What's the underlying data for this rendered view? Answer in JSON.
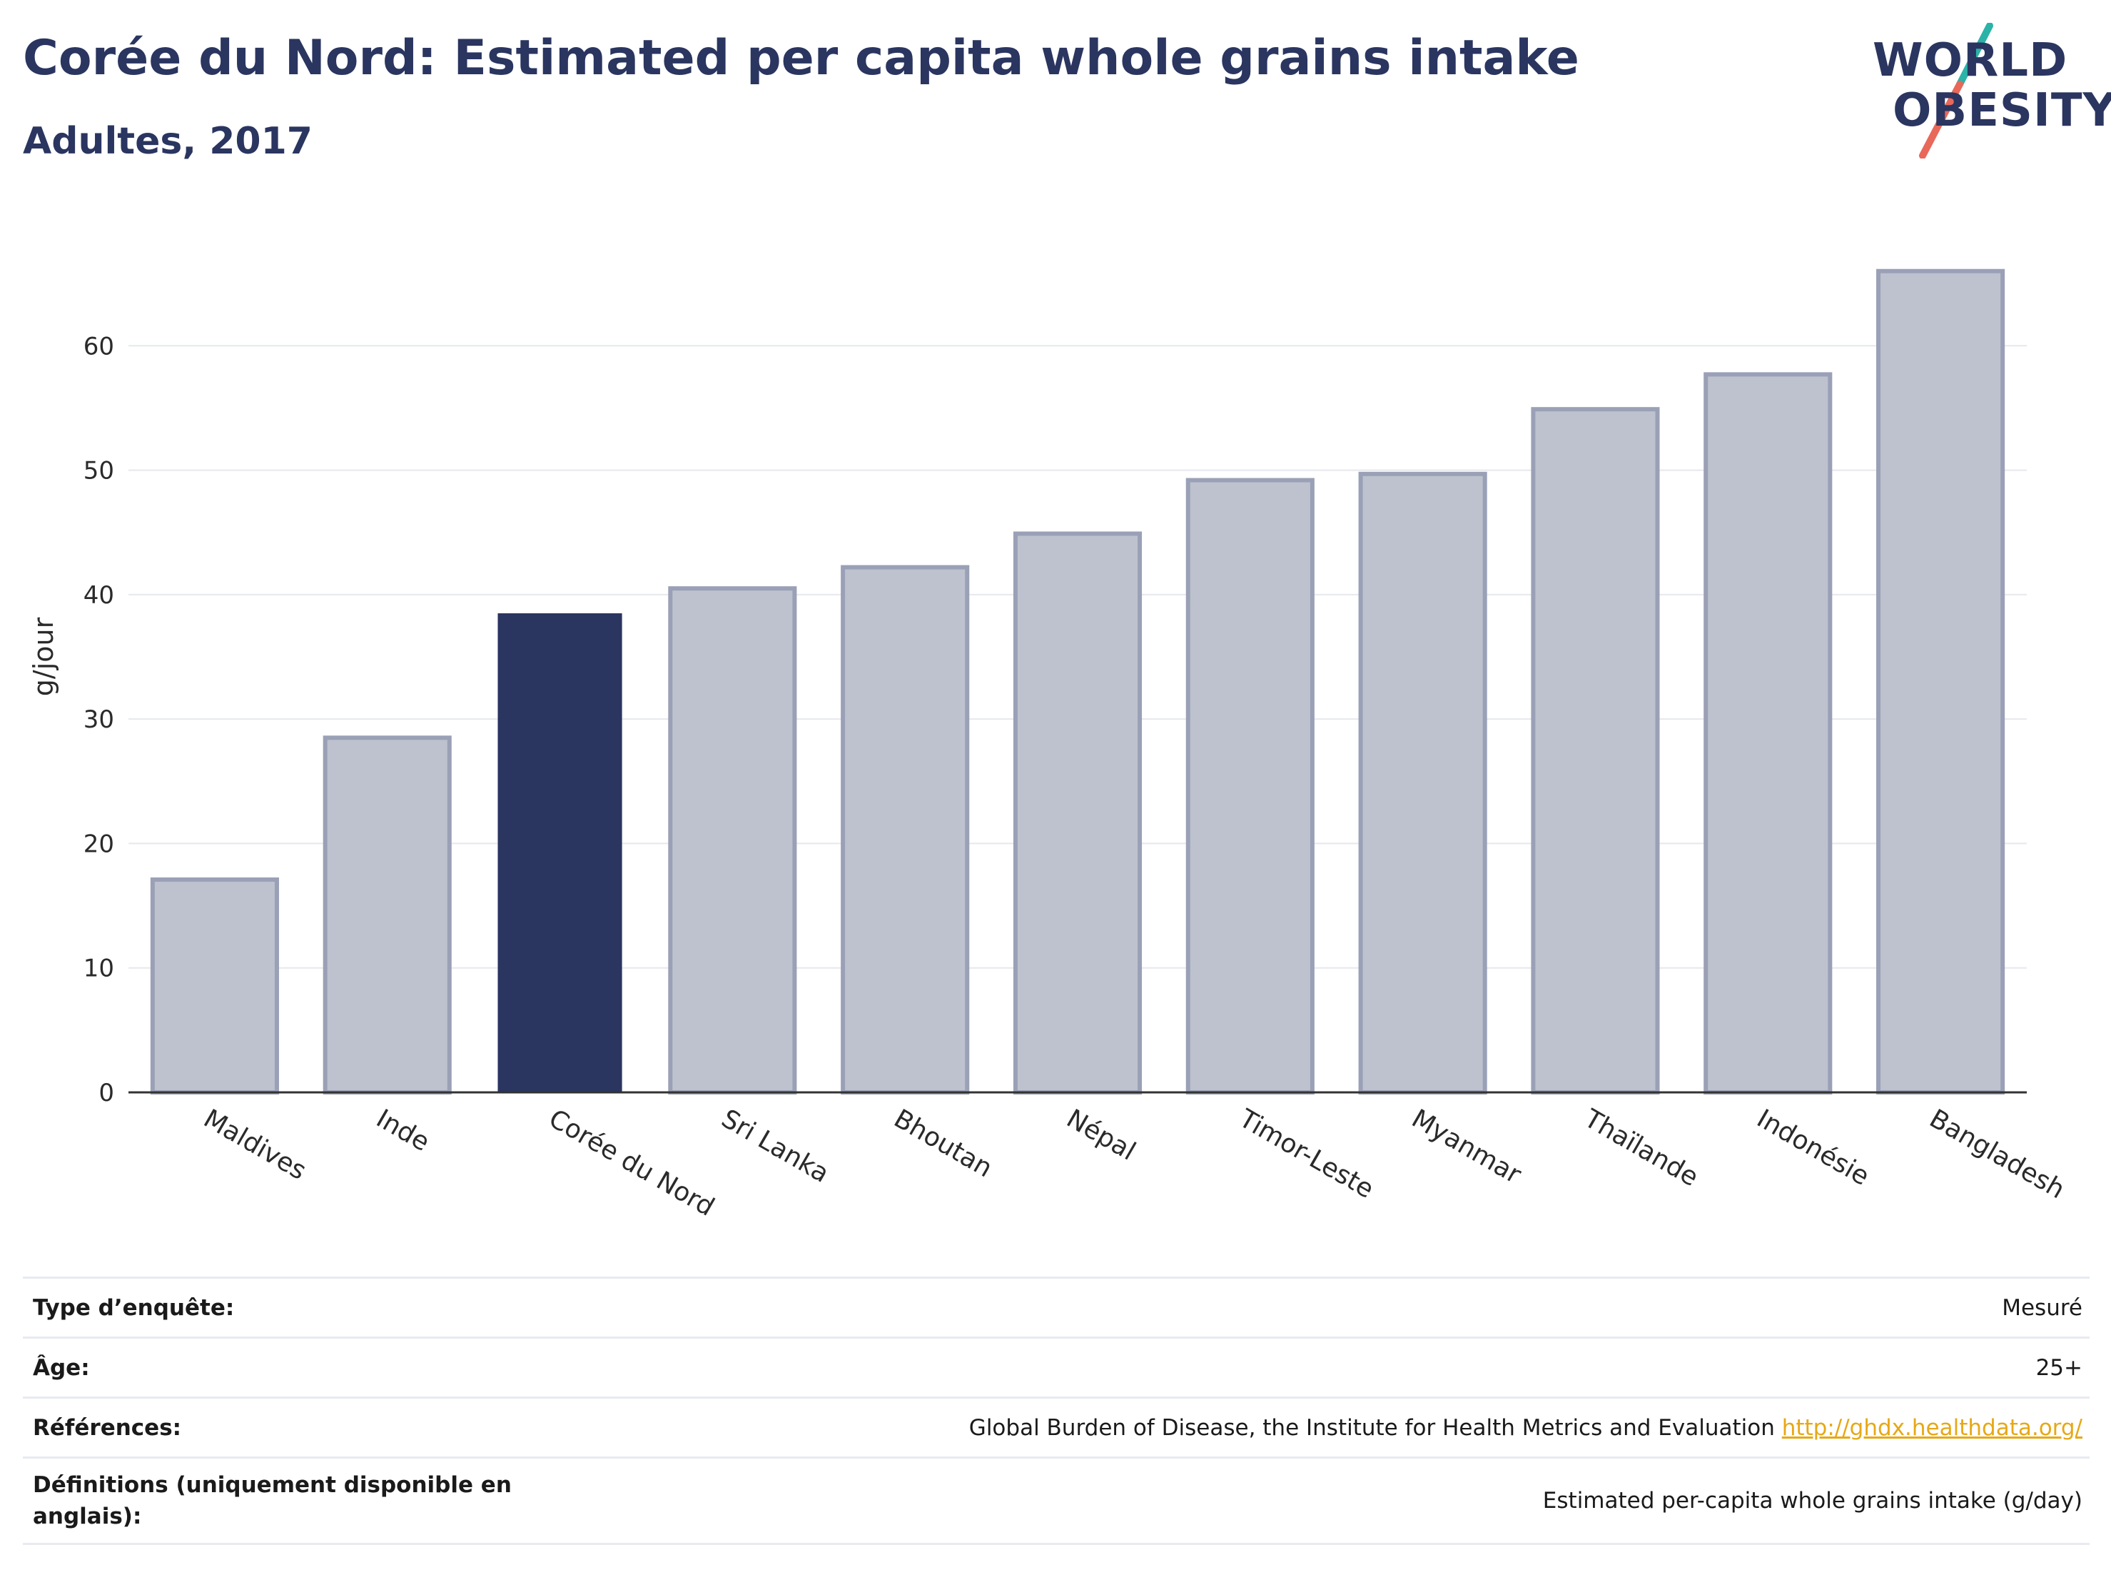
{
  "header": {
    "title": "Corée du Nord: Estimated per capita whole grains intake",
    "subtitle": "Adultes, 2017"
  },
  "logo": {
    "line1": "WORLD",
    "line2": "OBESITY",
    "colors": {
      "text": "#2a3560",
      "slash_top": "#2bb3a8",
      "slash_bottom": "#e8685a"
    }
  },
  "chart_data": {
    "type": "bar",
    "categories": [
      "Maldives",
      "Inde",
      "Corée du Nord",
      "Sri Lanka",
      "Bhoutan",
      "Népal",
      "Timor-Leste",
      "Myanmar",
      "Thaïlande",
      "Indonésie",
      "Bangladesh"
    ],
    "values": [
      17.1,
      28.5,
      38.5,
      40.5,
      42.2,
      44.9,
      49.2,
      49.7,
      54.9,
      57.7,
      66.0
    ],
    "highlight": "Corée du Nord",
    "ylabel": "g/jour",
    "xlabel": "",
    "ylim": [
      0,
      70
    ],
    "yticks": [
      0,
      10,
      20,
      30,
      40,
      50,
      60
    ],
    "grid": true,
    "colors": {
      "highlight": "#2a3560",
      "other_fill": "#bec2ce",
      "other_stroke": "#9aa0b6"
    }
  },
  "info_table": [
    {
      "key": "Type d’enquête:",
      "value": "Mesuré",
      "link": ""
    },
    {
      "key": "Âge:",
      "value": "25+",
      "link": ""
    },
    {
      "key": "Références:",
      "value": "Global Burden of Disease, the Institute for Health Metrics and Evaluation",
      "link": "http://ghdx.healthdata.org/"
    },
    {
      "key": "Définitions (uniquement disponible en anglais):",
      "value": "Estimated per-capita whole grains intake (g/day)",
      "link": ""
    }
  ]
}
